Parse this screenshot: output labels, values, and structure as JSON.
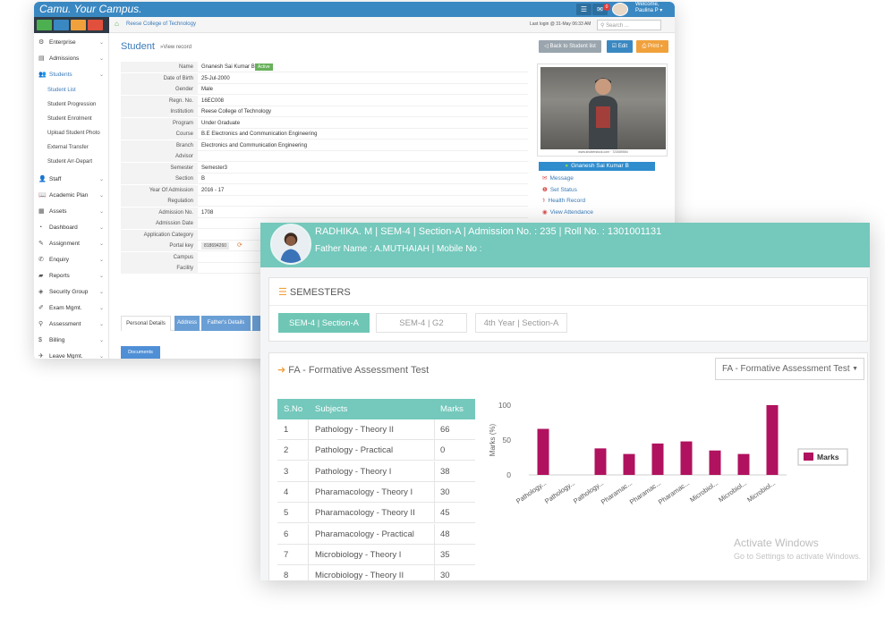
{
  "window1": {
    "brand": "Camu. Your Campus.",
    "welcome_line1": "Welcome,",
    "welcome_line2": "Paulina P ▾",
    "topbar_badge": "0",
    "breadcrumb": "Reese College of Technology",
    "last_login": "Last login @ 31-May 06:33 AM",
    "search_placeholder": "Search ...",
    "sidebar": {
      "items": [
        {
          "icon": "enterprise-icon",
          "glyph": "⚙",
          "label": "Enterprise"
        },
        {
          "icon": "admissions-icon",
          "glyph": "▤",
          "label": "Admissions"
        },
        {
          "icon": "students-icon",
          "glyph": "👥",
          "label": "Students"
        }
      ],
      "subitems": [
        "Student List",
        "Student Progression",
        "Student Enrolment",
        "Upload Student Photo",
        "External Transfer",
        "Student Arr-Depart"
      ],
      "items_after": [
        {
          "icon": "staff-icon",
          "glyph": "👤",
          "label": "Staff"
        },
        {
          "icon": "academic-plan-icon",
          "glyph": "📖",
          "label": "Academic Plan"
        },
        {
          "icon": "assets-icon",
          "glyph": "▦",
          "label": "Assets"
        },
        {
          "icon": "dashboard-icon",
          "glyph": "◔",
          "label": "Dashboard"
        },
        {
          "icon": "assignment-icon",
          "glyph": "✎",
          "label": "Assignment"
        },
        {
          "icon": "enquiry-icon",
          "glyph": "✆",
          "label": "Enquiry"
        },
        {
          "icon": "reports-icon",
          "glyph": "▰",
          "label": "Reports"
        },
        {
          "icon": "security-group-icon",
          "glyph": "◈",
          "label": "Security Group"
        },
        {
          "icon": "exam-mgmt-icon",
          "glyph": "✐",
          "label": "Exam Mgmt."
        },
        {
          "icon": "assessment-icon",
          "glyph": "⚲",
          "label": "Assessment"
        },
        {
          "icon": "billing-icon",
          "glyph": "$",
          "label": "Billing"
        },
        {
          "icon": "leave-mgmt-icon",
          "glyph": "✈",
          "label": "Leave Mgmt."
        }
      ]
    },
    "page_title": "Student",
    "page_subtitle": "»View record",
    "buttons": {
      "back": "◁ Back to Student list",
      "edit": "☑ Edit",
      "print": "⎙ Print ▾"
    },
    "student": {
      "labels": [
        "Name",
        "Date of Birth",
        "Gender",
        "Regn. No.",
        "Institution",
        "Program",
        "Course",
        "Branch",
        "Advisor",
        "Semester",
        "Section",
        "Year Of Admission",
        "Regulation",
        "Admission No.",
        "Admission Date",
        "Application Category",
        "Portal key",
        "Campus",
        "Facility"
      ],
      "values": [
        "Gnanesh Sai Kumar B",
        "25-Jul-2000",
        "Male",
        "16EC008",
        "Reese College of Technology",
        "Under Graduate",
        "B.E Electronics and Communication Engineering",
        "Electronics and Communication Engineering",
        "",
        "Semester3",
        "B",
        "2016 - 17",
        "",
        "1708",
        "",
        "",
        "",
        "",
        ""
      ],
      "status_badge": "Active",
      "portal_key": "818694260"
    },
    "photo_caption": "www.shutterstock.com · 723089554",
    "profile_name": "Gnanesh Sai Kumar B",
    "actions": [
      {
        "icon": "message-icon",
        "glyph": "✉",
        "label": "Message"
      },
      {
        "icon": "set-status-icon",
        "glyph": "❶",
        "label": "Set Status"
      },
      {
        "icon": "health-record-icon",
        "glyph": "⚕",
        "label": "Health Record"
      },
      {
        "icon": "attendance-icon",
        "glyph": "◉",
        "label": "View Attendance"
      }
    ],
    "tabs": [
      "Personal Details",
      "Address",
      "Father's Details",
      ""
    ],
    "documents_label": "Documents"
  },
  "window2": {
    "header_line1": "RADHIKA. M | SEM-4 | Section-A | Admission No. : 235 | Roll No. : 1301001131",
    "header_line2": "Father Name : A.MUTHAIAH | Mobile No :",
    "semesters_title": "SEMESTERS",
    "semester_tabs": [
      "SEM-4 | Section-A",
      "SEM-4 | G2",
      "4th Year | Section-A"
    ],
    "fa_title": "FA - Formative Assessment Test",
    "fa_select": "FA - Formative Assessment Test",
    "table_headers": {
      "sno": "S.No",
      "subject": "Subjects",
      "marks": "Marks"
    },
    "table_rows": [
      {
        "sno": "1",
        "subject": "Pathology - Theory II",
        "marks": "66"
      },
      {
        "sno": "2",
        "subject": "Pathology - Practical",
        "marks": "0"
      },
      {
        "sno": "3",
        "subject": "Pathology - Theory I",
        "marks": "38"
      },
      {
        "sno": "4",
        "subject": "Pharamacology - Theory I",
        "marks": "30"
      },
      {
        "sno": "5",
        "subject": "Pharamacology - Theory II",
        "marks": "45"
      },
      {
        "sno": "6",
        "subject": "Pharamacology - Practical",
        "marks": "48"
      },
      {
        "sno": "7",
        "subject": "Microbiology - Theory I",
        "marks": "35"
      },
      {
        "sno": "8",
        "subject": "Microbiology - Theory II",
        "marks": "30"
      }
    ],
    "watermark_line1": "Activate Windows",
    "watermark_line2": "Go to Settings to activate Windows."
  },
  "chart_data": {
    "type": "bar",
    "categories": [
      "Pathology...",
      "Pathology...",
      "Pathology...",
      "Pharamac...",
      "Pharamac...",
      "Pharamac...",
      "Microbiol...",
      "Microbiol...",
      "Microbiol..."
    ],
    "series": [
      {
        "name": "Marks",
        "values": [
          66,
          0,
          38,
          30,
          45,
          48,
          35,
          30,
          100
        ]
      }
    ],
    "ylabel": "Marks (%)",
    "yticks": [
      "0",
      "50",
      "100"
    ],
    "ylim": [
      0,
      100
    ],
    "legend": "right",
    "color": "#b0125f"
  }
}
